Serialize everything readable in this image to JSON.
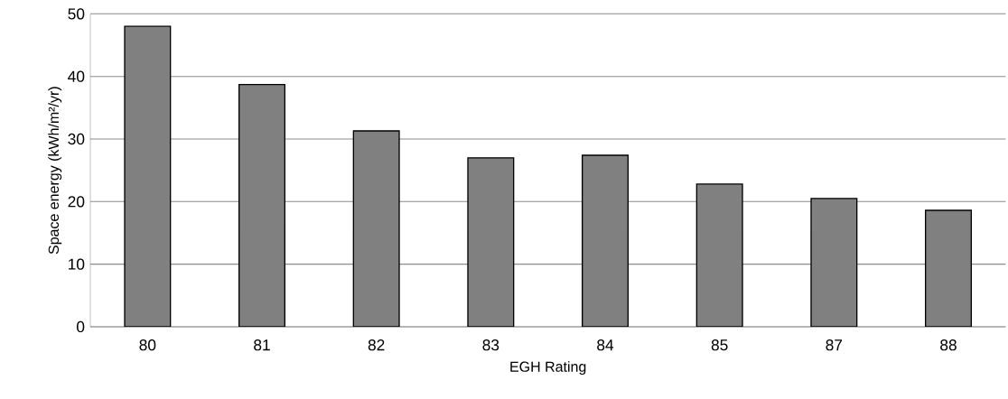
{
  "chart_data": {
    "type": "bar",
    "xlabel": "EGH Rating",
    "ylabel": "Space energy (kWh/m²/yr)",
    "categories": [
      "80",
      "81",
      "82",
      "83",
      "84",
      "85",
      "87",
      "88"
    ],
    "values": [
      48.0,
      38.7,
      31.3,
      27.0,
      27.4,
      22.8,
      20.5,
      18.6
    ],
    "color": "#808080",
    "ylim": [
      0,
      50
    ],
    "yticks": [
      0,
      10,
      20,
      30,
      40,
      50
    ],
    "grid": "y"
  }
}
